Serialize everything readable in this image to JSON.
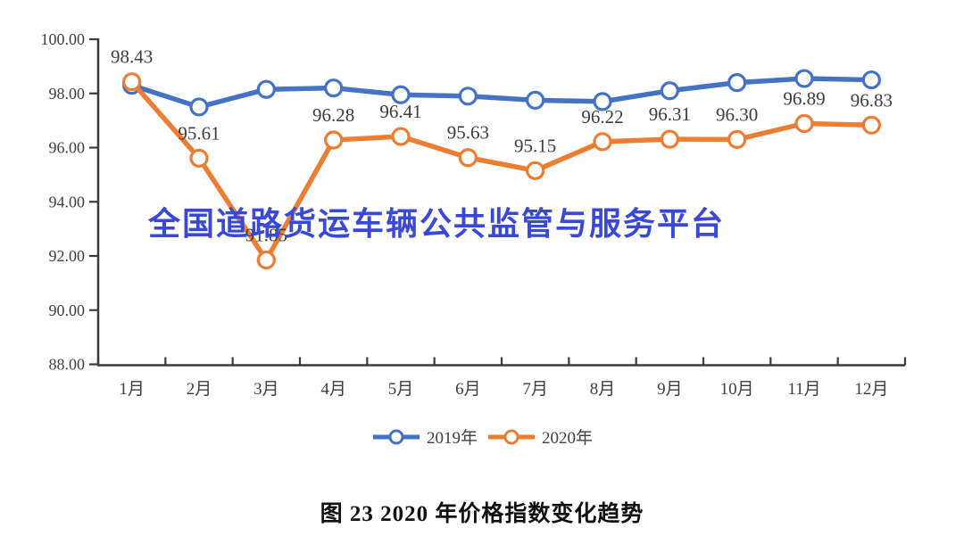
{
  "watermark": {
    "text": "全国道路货运车辆公共监管与服务平台",
    "color": "#3a48d8"
  },
  "caption": "图 23 2020 年价格指数变化趋势",
  "chart_data": {
    "type": "line",
    "categories": [
      "1月",
      "2月",
      "3月",
      "4月",
      "5月",
      "6月",
      "7月",
      "8月",
      "9月",
      "10月",
      "11月",
      "12月"
    ],
    "series": [
      {
        "name": "2019年",
        "color": "#4472c4",
        "marker": "open-circle",
        "data_labels": false,
        "values": [
          98.3,
          97.5,
          98.15,
          98.2,
          97.95,
          97.9,
          97.75,
          97.7,
          98.1,
          98.4,
          98.55,
          98.5
        ]
      },
      {
        "name": "2020年",
        "color": "#ed7d31",
        "marker": "open-circle",
        "data_labels": true,
        "values": [
          98.43,
          95.61,
          91.85,
          96.28,
          96.41,
          95.63,
          95.15,
          96.22,
          96.31,
          96.3,
          96.89,
          96.83
        ],
        "labels": [
          "98.43",
          "95.61",
          "91.85",
          "96.28",
          "96.41",
          "95.63",
          "95.15",
          "96.22",
          "96.31",
          "96.30",
          "96.89",
          "96.83"
        ]
      }
    ],
    "ylim": [
      88,
      100
    ],
    "y_ticks": [
      "100.00",
      "98.00",
      "96.00",
      "94.00",
      "92.00",
      "90.00",
      "88.00"
    ],
    "grid": false,
    "legend_position": "bottom",
    "axis_color": "#3b3b3b",
    "label_color": "#3d3d3d"
  }
}
